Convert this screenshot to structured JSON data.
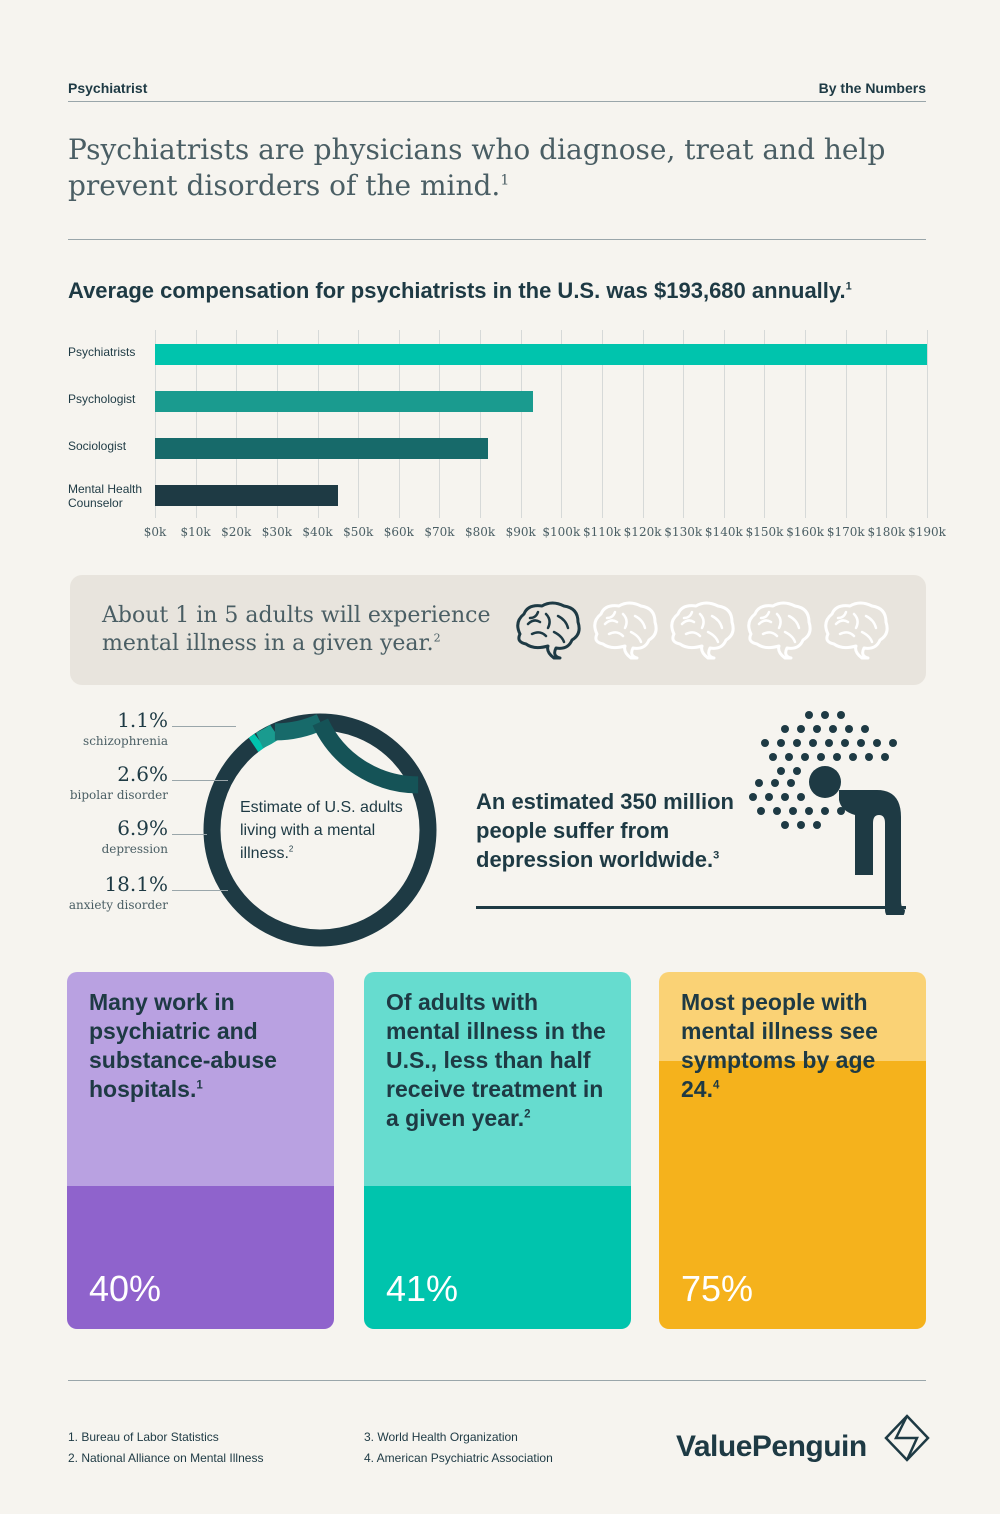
{
  "header": {
    "left": "Psychiatrist",
    "right": "By the Numbers"
  },
  "intro": {
    "text": "Psychiatrists are physicians who diagnose, treat and help prevent disorders of the mind.",
    "sup": "1"
  },
  "chart_data": [
    {
      "type": "bar",
      "orientation": "horizontal",
      "title": "Average compensation for psychiatrists in the U.S. was $193,680 annually.",
      "title_sup": "1",
      "categories": [
        "Psychiatrists",
        "Psychologist",
        "Sociologist",
        "Mental Health Counselor"
      ],
      "values": [
        193680,
        93000,
        82000,
        45000
      ],
      "colors": [
        "#00c4ad",
        "#1a9b8f",
        "#176a6a",
        "#1e3a44"
      ],
      "xlim": [
        0,
        190000
      ],
      "xticks": [
        "$0k",
        "$10k",
        "$20k",
        "$30k",
        "$40k",
        "$50k",
        "$60k",
        "$70k",
        "$80k",
        "$90k",
        "$100k",
        "$110k",
        "$120k",
        "$130k",
        "$140k",
        "$150k",
        "$160k",
        "$170k",
        "$180k",
        "$190k"
      ],
      "grid": true
    },
    {
      "type": "pie",
      "style": "donut",
      "center_text": "Estimate of U.S. adults living with a mental illness.",
      "center_sup": "2",
      "slices": [
        {
          "label": "schizophrenia",
          "value_text": "1.1%",
          "value": 1.1,
          "color": "#00c4ad"
        },
        {
          "label": "bipolar disorder",
          "value_text": "2.6%",
          "value": 2.6,
          "color": "#1a9b8f"
        },
        {
          "label": "depression",
          "value_text": "6.9%",
          "value": 6.9,
          "color": "#176a6a"
        },
        {
          "label": "anxiety disorder",
          "value_text": "18.1%",
          "value": 18.1,
          "color": "#155357"
        }
      ],
      "remainder_color": "#1e3a44"
    }
  ],
  "callout": {
    "text": "About 1 in 5 adults will experience mental illness in a given year.",
    "sup": "2",
    "icons": [
      "brain-icon",
      "brain-icon",
      "brain-icon",
      "brain-icon",
      "brain-icon"
    ],
    "highlighted": 1
  },
  "depression": {
    "text": "An estimated 350 million people suffer from depression worldwide.",
    "sup": "3",
    "icon": "person-head-down-icon"
  },
  "cards": [
    {
      "text": "Many work in psychiatric and substance-abuse hospitals.",
      "sup": "1",
      "value_text": "40%",
      "value": 0.4,
      "light": "#b9a1e1",
      "dark": "#8f63cc"
    },
    {
      "text": "Of adults with mental illness in the U.S., less than half receive treatment in a given year.",
      "sup": "2",
      "value_text": "41%",
      "value": 0.41,
      "light": "#66dccf",
      "dark": "#00c4ad"
    },
    {
      "text": "Most people with mental illness see symptoms by age 24.",
      "sup": "4",
      "value_text": "75%",
      "value": 0.75,
      "light": "#fad275",
      "dark": "#f5b21c"
    }
  ],
  "sources": [
    "1.  Bureau of Labor Statistics",
    "2.  National Alliance on Mental Illness",
    "3.  World Health Organization",
    "4.  American Psychiatric Association"
  ],
  "brand": "ValuePenguin"
}
